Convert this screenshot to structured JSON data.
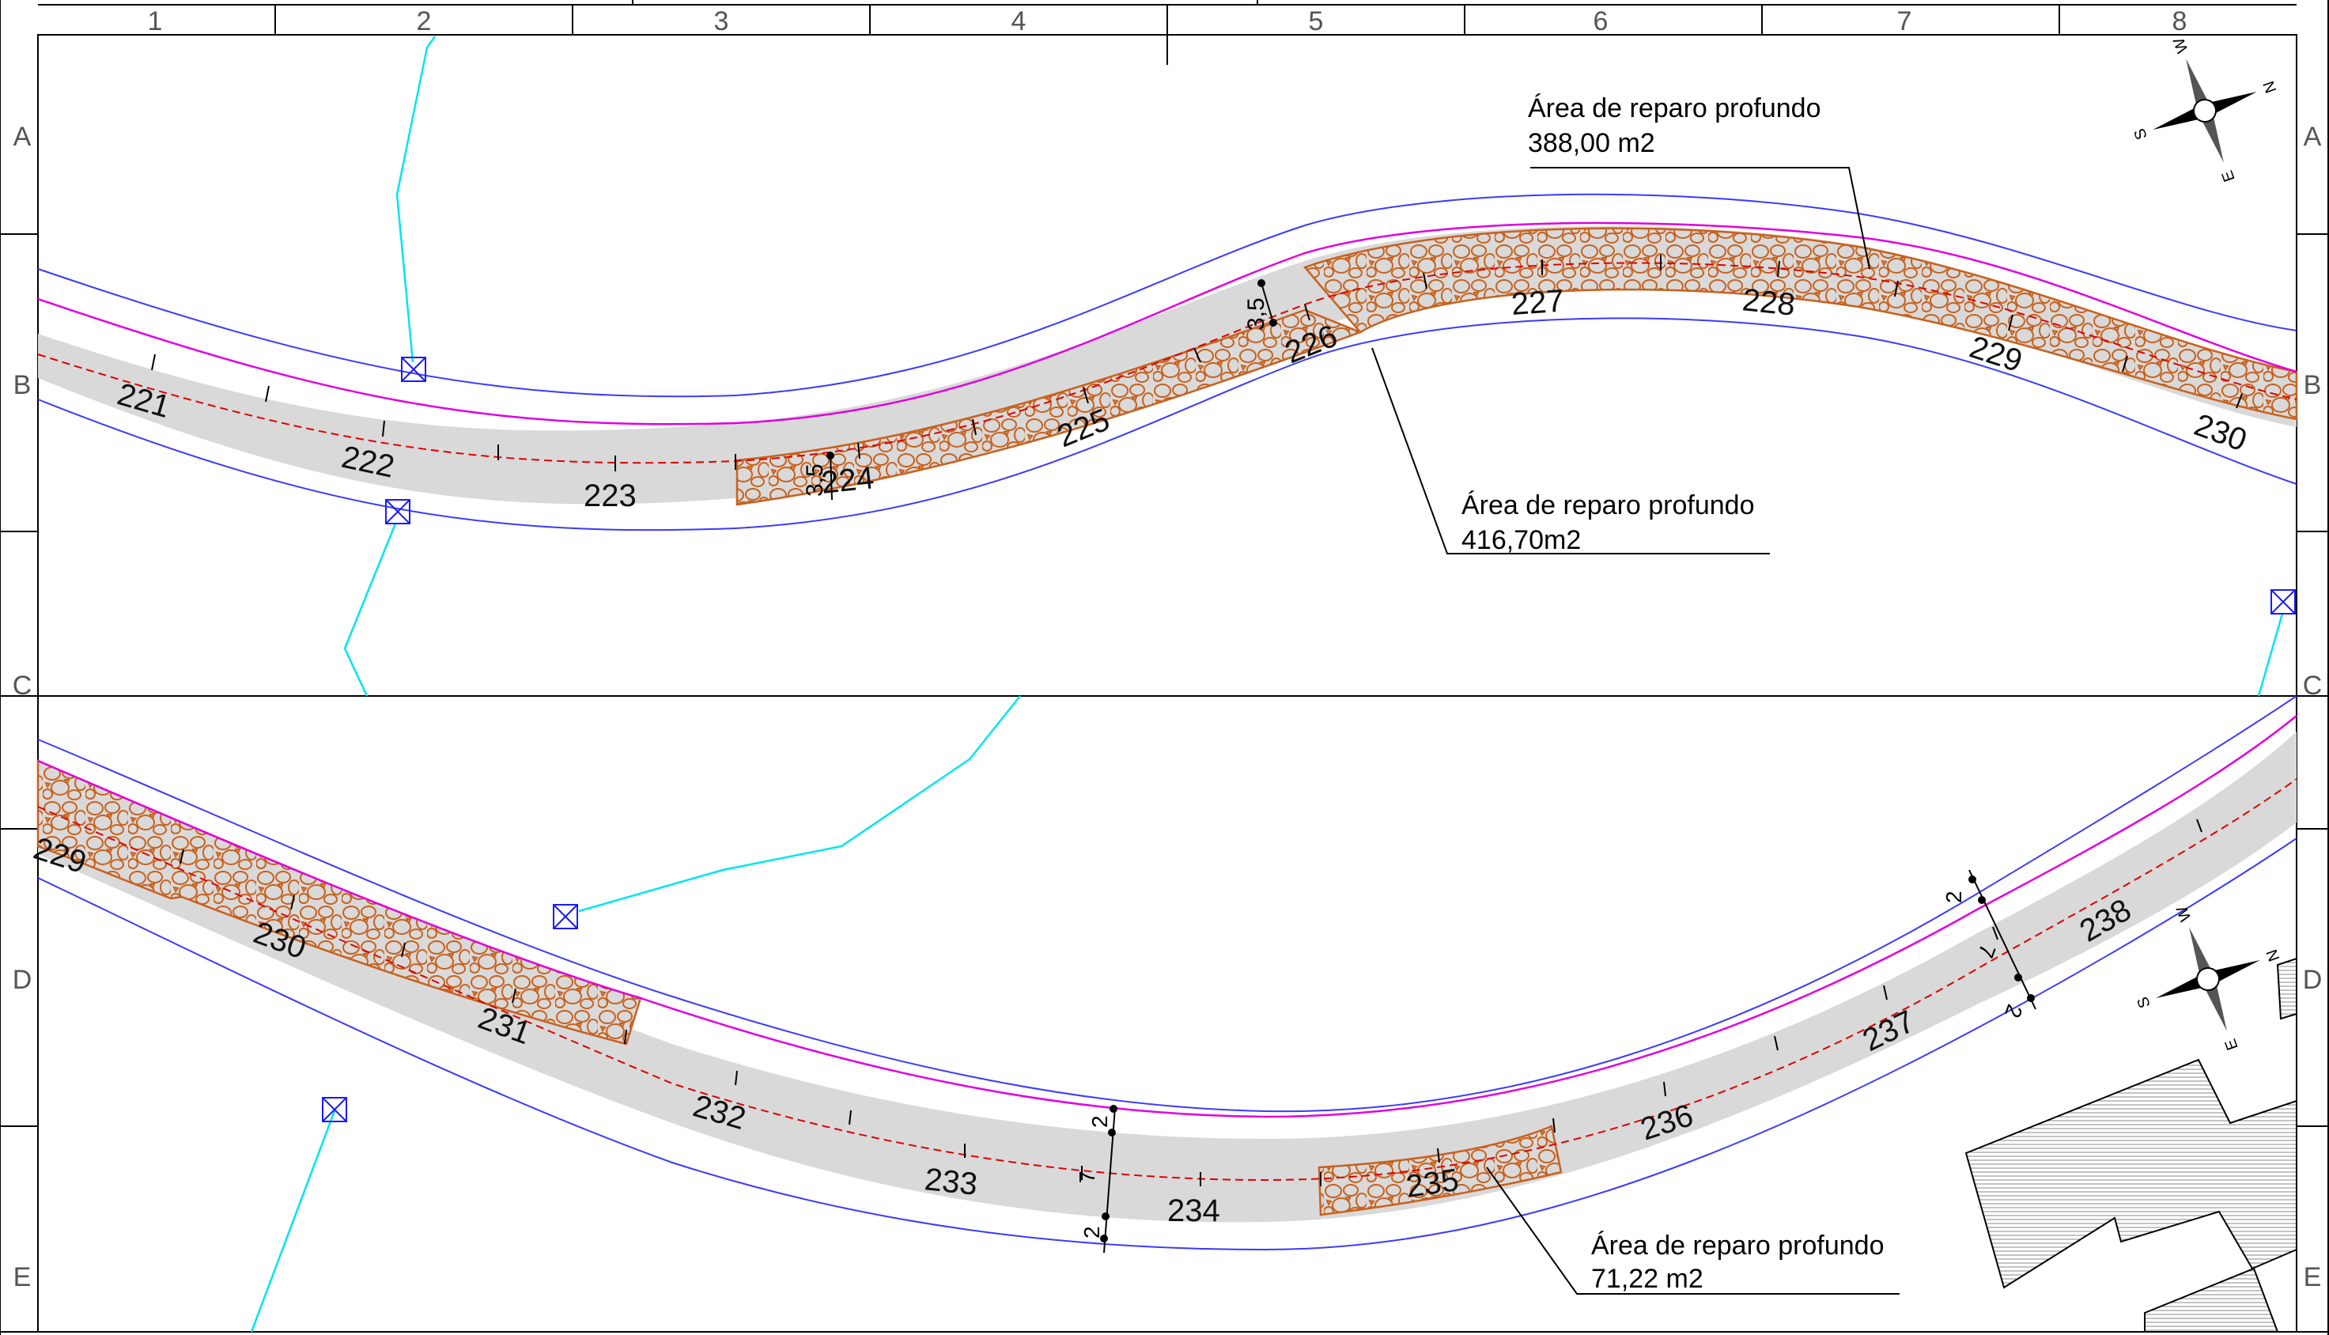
{
  "grid": {
    "columns": [
      "1",
      "2",
      "3",
      "4",
      "5",
      "6",
      "7",
      "8"
    ],
    "rows": [
      "A",
      "B",
      "C",
      "D",
      "E"
    ]
  },
  "stations_top": [
    "221",
    "222",
    "223",
    "224",
    "225",
    "226",
    "227",
    "228",
    "229",
    "230"
  ],
  "stations_bottom": [
    "229",
    "230",
    "231",
    "232",
    "233",
    "234",
    "235",
    "236",
    "237",
    "238"
  ],
  "dimensions": {
    "top_a": "3,5",
    "top_b": "3,5",
    "bottom_left": [
      "2",
      "7",
      "2"
    ],
    "bottom_right": [
      "2",
      "7",
      "2"
    ]
  },
  "compass": {
    "s": "S",
    "w": "W",
    "e": "E",
    "n": "N"
  },
  "annotations": [
    {
      "title": "Área de reparo profundo",
      "value": "388,00 m2"
    },
    {
      "title": "Área de reparo profundo",
      "value": "416,70m2"
    },
    {
      "title": "Área de reparo profundo",
      "value": "71,22 m2"
    }
  ],
  "colors": {
    "road_fill": "#d9d9d9",
    "edge_line": "#3a3aff",
    "magenta_line": "#e000e0",
    "center_line": "#e00000",
    "repair_outline": "#c8611d",
    "drainage": "#00e5ee"
  }
}
